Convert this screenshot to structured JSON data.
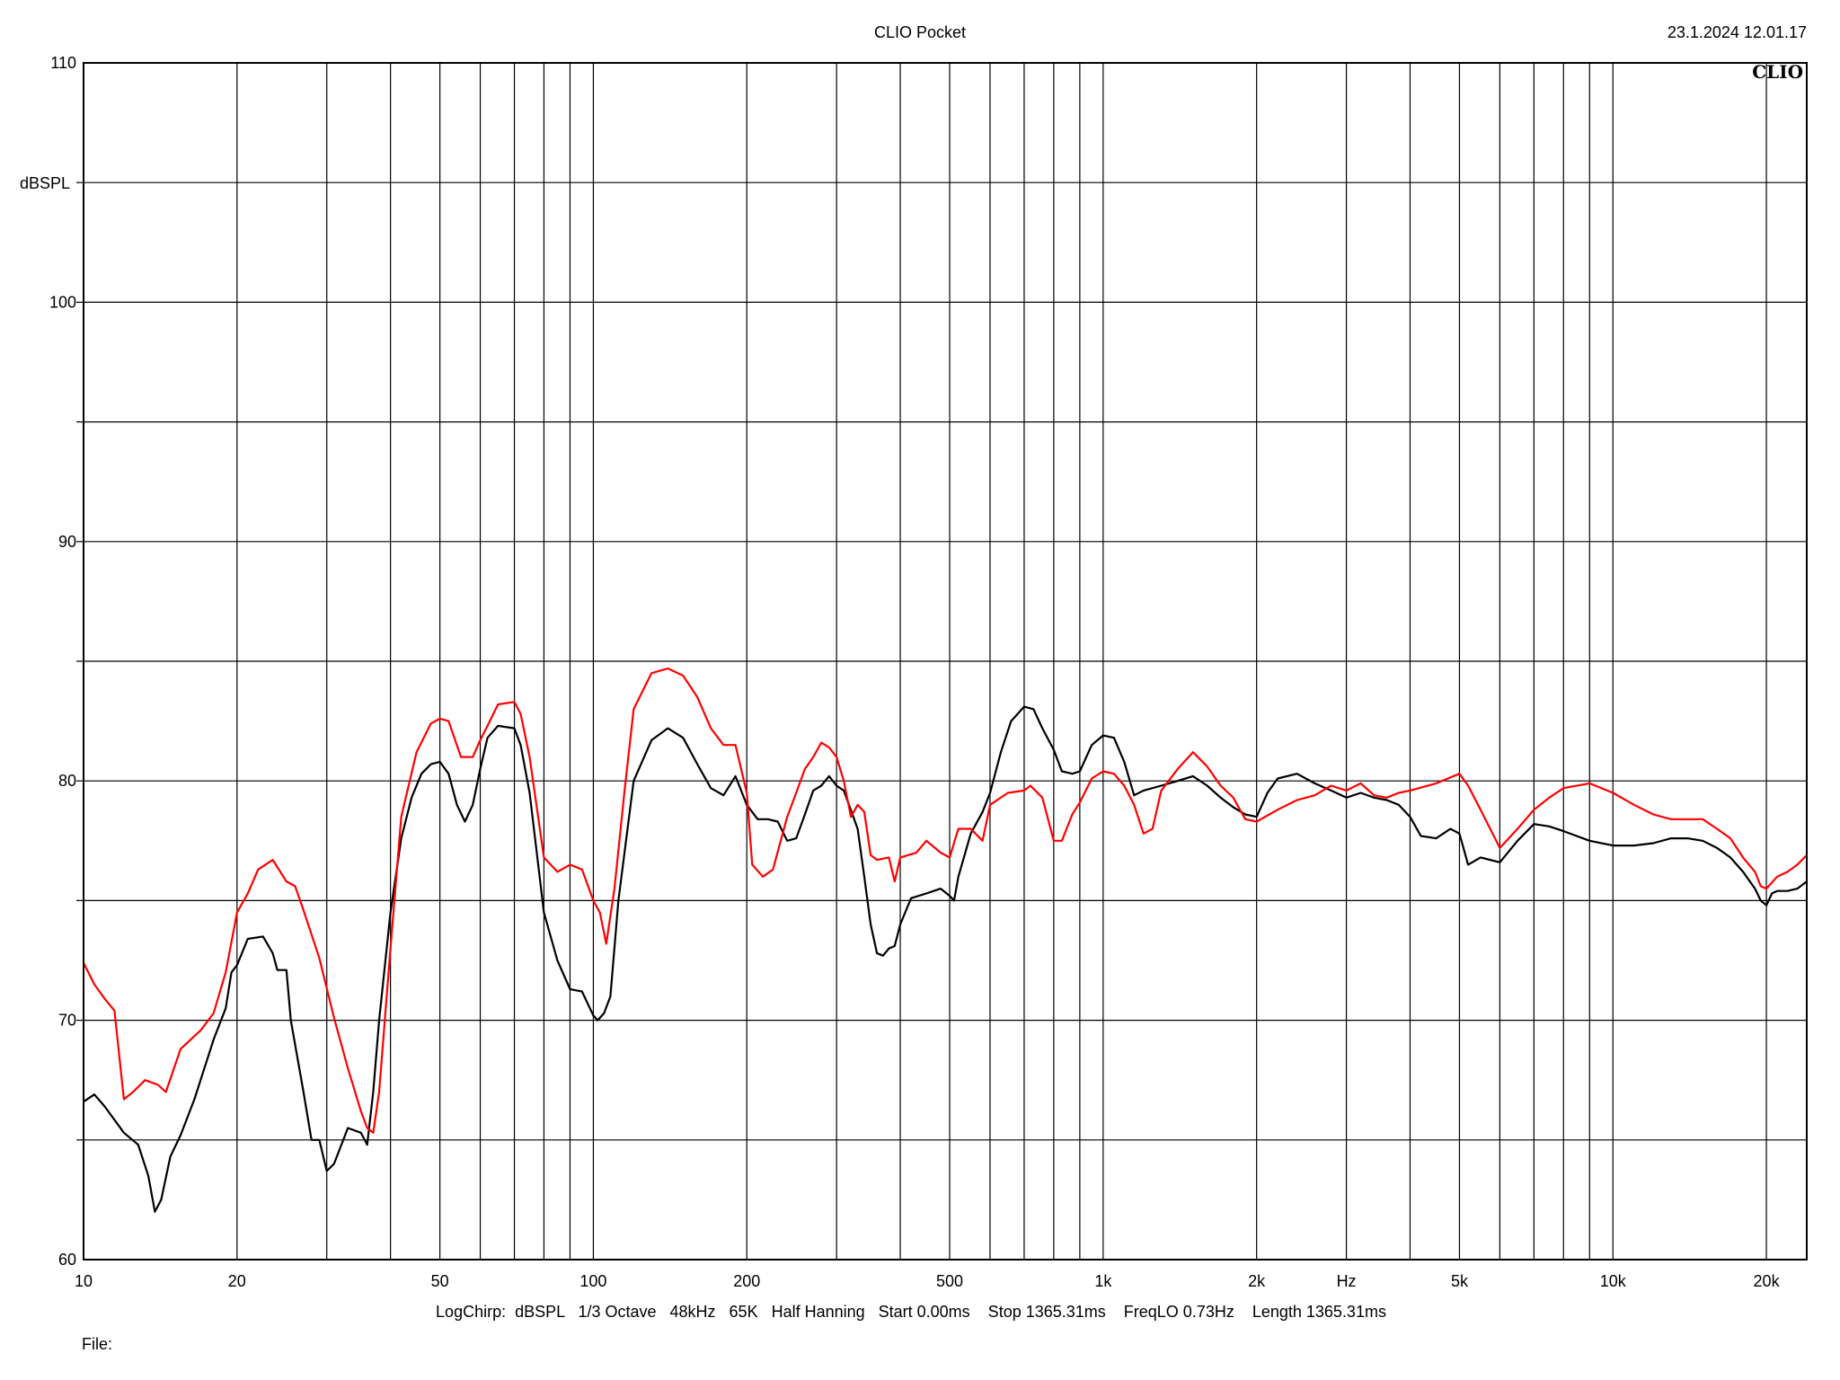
{
  "header": {
    "title": "CLIO Pocket",
    "timestamp": "23.1.2024 12.01.17",
    "logo": "CLIO"
  },
  "footer": {
    "settings": "LogChirp:  dBSPL   1/3 Octave   48kHz   65K   Half Hanning   Start 0.00ms    Stop 1365.31ms    FreqLO 0.73Hz    Length 1365.31ms",
    "file_label": "File:"
  },
  "chart_data": {
    "type": "line",
    "title": "CLIO Pocket",
    "xlabel": "Hz",
    "ylabel": "dBSPL",
    "xscale": "log",
    "xlim": [
      10,
      24000
    ],
    "ylim": [
      60,
      110
    ],
    "grid": true,
    "x_tick_labels": [
      {
        "value": 10,
        "label": "10"
      },
      {
        "value": 20,
        "label": "20"
      },
      {
        "value": 50,
        "label": "50"
      },
      {
        "value": 100,
        "label": "100"
      },
      {
        "value": 200,
        "label": "200"
      },
      {
        "value": 500,
        "label": "500"
      },
      {
        "value": 1000,
        "label": "1k"
      },
      {
        "value": 2000,
        "label": "2k"
      },
      {
        "value": 5000,
        "label": "5k"
      },
      {
        "value": 10000,
        "label": "10k"
      },
      {
        "value": 20000,
        "label": "20k"
      }
    ],
    "x_axis_unit_label_at": 3000,
    "y_ticks": [
      60,
      70,
      80,
      90,
      100,
      110
    ],
    "y_grid_step": 5,
    "series": [
      {
        "color": "#000000",
        "points": [
          [
            10,
            66.6
          ],
          [
            10.5,
            66.9
          ],
          [
            11,
            66.4
          ],
          [
            12,
            65.3
          ],
          [
            12.8,
            64.8
          ],
          [
            13.4,
            63.5
          ],
          [
            13.8,
            62
          ],
          [
            14.2,
            62.5
          ],
          [
            14.8,
            64.3
          ],
          [
            15.5,
            65.2
          ],
          [
            16.5,
            66.7
          ],
          [
            18,
            69.2
          ],
          [
            19,
            70.5
          ],
          [
            19.5,
            72
          ],
          [
            20,
            72.3
          ],
          [
            21,
            73.4
          ],
          [
            22.5,
            73.5
          ],
          [
            23.5,
            72.8
          ],
          [
            24,
            72.1
          ],
          [
            25,
            72.1
          ],
          [
            25.5,
            70
          ],
          [
            27,
            67
          ],
          [
            28,
            65
          ],
          [
            29,
            65
          ],
          [
            30,
            63.7
          ],
          [
            31,
            64
          ],
          [
            33,
            65.5
          ],
          [
            35,
            65.3
          ],
          [
            36,
            64.8
          ],
          [
            37,
            67
          ],
          [
            38,
            70
          ],
          [
            40,
            74.5
          ],
          [
            42,
            77.6
          ],
          [
            44,
            79.3
          ],
          [
            46,
            80.3
          ],
          [
            48,
            80.7
          ],
          [
            50,
            80.8
          ],
          [
            52,
            80.3
          ],
          [
            54,
            79
          ],
          [
            56,
            78.3
          ],
          [
            58,
            79
          ],
          [
            60,
            80.5
          ],
          [
            62,
            81.8
          ],
          [
            65,
            82.3
          ],
          [
            70,
            82.2
          ],
          [
            72,
            81.5
          ],
          [
            75,
            79.5
          ],
          [
            80,
            74.5
          ],
          [
            85,
            72.5
          ],
          [
            90,
            71.3
          ],
          [
            95,
            71.2
          ],
          [
            100,
            70.2
          ],
          [
            102,
            70
          ],
          [
            105,
            70.3
          ],
          [
            108,
            71
          ],
          [
            112,
            75
          ],
          [
            120,
            80
          ],
          [
            130,
            81.7
          ],
          [
            140,
            82.2
          ],
          [
            150,
            81.8
          ],
          [
            160,
            80.7
          ],
          [
            170,
            79.7
          ],
          [
            180,
            79.4
          ],
          [
            190,
            80.2
          ],
          [
            200,
            79
          ],
          [
            210,
            78.4
          ],
          [
            220,
            78.4
          ],
          [
            230,
            78.3
          ],
          [
            240,
            77.5
          ],
          [
            250,
            77.6
          ],
          [
            260,
            78.6
          ],
          [
            270,
            79.6
          ],
          [
            280,
            79.8
          ],
          [
            290,
            80.2
          ],
          [
            300,
            79.8
          ],
          [
            310,
            79.6
          ],
          [
            330,
            78
          ],
          [
            340,
            76
          ],
          [
            350,
            74
          ],
          [
            360,
            72.8
          ],
          [
            370,
            72.7
          ],
          [
            380,
            73
          ],
          [
            390,
            73.1
          ],
          [
            400,
            74
          ],
          [
            420,
            75.1
          ],
          [
            450,
            75.3
          ],
          [
            480,
            75.5
          ],
          [
            500,
            75.2
          ],
          [
            510,
            75
          ],
          [
            520,
            76
          ],
          [
            550,
            77.8
          ],
          [
            580,
            78.7
          ],
          [
            600,
            79.5
          ],
          [
            630,
            81.2
          ],
          [
            660,
            82.5
          ],
          [
            700,
            83.1
          ],
          [
            730,
            83
          ],
          [
            760,
            82.2
          ],
          [
            800,
            81.3
          ],
          [
            830,
            80.4
          ],
          [
            870,
            80.3
          ],
          [
            900,
            80.4
          ],
          [
            950,
            81.5
          ],
          [
            1000,
            81.9
          ],
          [
            1050,
            81.8
          ],
          [
            1100,
            80.8
          ],
          [
            1150,
            79.4
          ],
          [
            1200,
            79.6
          ],
          [
            1300,
            79.8
          ],
          [
            1400,
            80
          ],
          [
            1500,
            80.2
          ],
          [
            1600,
            79.8
          ],
          [
            1700,
            79.3
          ],
          [
            1800,
            78.9
          ],
          [
            1900,
            78.6
          ],
          [
            2000,
            78.5
          ],
          [
            2100,
            79.5
          ],
          [
            2200,
            80.1
          ],
          [
            2400,
            80.3
          ],
          [
            2600,
            79.9
          ],
          [
            2800,
            79.6
          ],
          [
            3000,
            79.3
          ],
          [
            3200,
            79.5
          ],
          [
            3400,
            79.3
          ],
          [
            3600,
            79.2
          ],
          [
            3800,
            79
          ],
          [
            4000,
            78.5
          ],
          [
            4200,
            77.7
          ],
          [
            4500,
            77.6
          ],
          [
            4800,
            78
          ],
          [
            5000,
            77.8
          ],
          [
            5200,
            76.5
          ],
          [
            5500,
            76.8
          ],
          [
            6000,
            76.6
          ],
          [
            6500,
            77.5
          ],
          [
            7000,
            78.2
          ],
          [
            7500,
            78.1
          ],
          [
            8000,
            77.9
          ],
          [
            9000,
            77.5
          ],
          [
            10000,
            77.3
          ],
          [
            11000,
            77.3
          ],
          [
            12000,
            77.4
          ],
          [
            13000,
            77.6
          ],
          [
            14000,
            77.6
          ],
          [
            15000,
            77.5
          ],
          [
            16000,
            77.2
          ],
          [
            17000,
            76.8
          ],
          [
            18000,
            76.2
          ],
          [
            19000,
            75.5
          ],
          [
            19500,
            75
          ],
          [
            20000,
            74.8
          ],
          [
            20500,
            75.3
          ],
          [
            21000,
            75.4
          ],
          [
            22000,
            75.4
          ],
          [
            23000,
            75.5
          ],
          [
            24000,
            75.8
          ]
        ]
      },
      {
        "color": "#ff0000",
        "points": [
          [
            10,
            72.4
          ],
          [
            10.5,
            71.5
          ],
          [
            11,
            70.9
          ],
          [
            11.5,
            70.4
          ],
          [
            12,
            66.7
          ],
          [
            12.5,
            67
          ],
          [
            13.2,
            67.5
          ],
          [
            14,
            67.3
          ],
          [
            14.5,
            67
          ],
          [
            15.5,
            68.8
          ],
          [
            17,
            69.6
          ],
          [
            18,
            70.3
          ],
          [
            19,
            72
          ],
          [
            20,
            74.5
          ],
          [
            21,
            75.3
          ],
          [
            22,
            76.3
          ],
          [
            23.5,
            76.7
          ],
          [
            25,
            75.8
          ],
          [
            26,
            75.6
          ],
          [
            27,
            74.6
          ],
          [
            29,
            72.6
          ],
          [
            31,
            70.1
          ],
          [
            33,
            68
          ],
          [
            35,
            66.2
          ],
          [
            36,
            65.5
          ],
          [
            37,
            65.3
          ],
          [
            38,
            67
          ],
          [
            40,
            73
          ],
          [
            42,
            78.5
          ],
          [
            45,
            81.2
          ],
          [
            48,
            82.4
          ],
          [
            50,
            82.6
          ],
          [
            52,
            82.5
          ],
          [
            55,
            81
          ],
          [
            58,
            81
          ],
          [
            60,
            81.7
          ],
          [
            62,
            82.3
          ],
          [
            65,
            83.2
          ],
          [
            70,
            83.3
          ],
          [
            72,
            82.8
          ],
          [
            75,
            81
          ],
          [
            80,
            76.8
          ],
          [
            85,
            76.2
          ],
          [
            90,
            76.5
          ],
          [
            95,
            76.3
          ],
          [
            100,
            75
          ],
          [
            103,
            74.5
          ],
          [
            106,
            73.2
          ],
          [
            110,
            75.5
          ],
          [
            115,
            79.5
          ],
          [
            120,
            83
          ],
          [
            130,
            84.5
          ],
          [
            140,
            84.7
          ],
          [
            150,
            84.4
          ],
          [
            160,
            83.5
          ],
          [
            170,
            82.2
          ],
          [
            180,
            81.5
          ],
          [
            190,
            81.5
          ],
          [
            200,
            79.5
          ],
          [
            205,
            76.5
          ],
          [
            215,
            76
          ],
          [
            225,
            76.3
          ],
          [
            240,
            78.5
          ],
          [
            250,
            79.5
          ],
          [
            260,
            80.5
          ],
          [
            270,
            81
          ],
          [
            280,
            81.6
          ],
          [
            290,
            81.4
          ],
          [
            300,
            81
          ],
          [
            310,
            80
          ],
          [
            320,
            78.5
          ],
          [
            330,
            79
          ],
          [
            340,
            78.7
          ],
          [
            350,
            76.9
          ],
          [
            360,
            76.7
          ],
          [
            380,
            76.8
          ],
          [
            390,
            75.8
          ],
          [
            400,
            76.8
          ],
          [
            430,
            77
          ],
          [
            450,
            77.5
          ],
          [
            480,
            77
          ],
          [
            500,
            76.8
          ],
          [
            520,
            78
          ],
          [
            550,
            78
          ],
          [
            580,
            77.5
          ],
          [
            600,
            79
          ],
          [
            650,
            79.5
          ],
          [
            700,
            79.6
          ],
          [
            720,
            79.8
          ],
          [
            760,
            79.3
          ],
          [
            800,
            77.5
          ],
          [
            830,
            77.5
          ],
          [
            870,
            78.6
          ],
          [
            900,
            79.1
          ],
          [
            950,
            80.1
          ],
          [
            1000,
            80.4
          ],
          [
            1050,
            80.3
          ],
          [
            1100,
            79.8
          ],
          [
            1150,
            79
          ],
          [
            1200,
            77.8
          ],
          [
            1250,
            78
          ],
          [
            1300,
            79.6
          ],
          [
            1400,
            80.5
          ],
          [
            1500,
            81.2
          ],
          [
            1600,
            80.6
          ],
          [
            1700,
            79.8
          ],
          [
            1800,
            79.3
          ],
          [
            1900,
            78.4
          ],
          [
            2000,
            78.3
          ],
          [
            2200,
            78.8
          ],
          [
            2400,
            79.2
          ],
          [
            2600,
            79.4
          ],
          [
            2800,
            79.8
          ],
          [
            3000,
            79.6
          ],
          [
            3200,
            79.9
          ],
          [
            3400,
            79.4
          ],
          [
            3600,
            79.3
          ],
          [
            3800,
            79.5
          ],
          [
            4000,
            79.6
          ],
          [
            4500,
            79.9
          ],
          [
            5000,
            80.3
          ],
          [
            5200,
            79.8
          ],
          [
            5500,
            78.8
          ],
          [
            6000,
            77.2
          ],
          [
            6500,
            78
          ],
          [
            7000,
            78.8
          ],
          [
            7500,
            79.3
          ],
          [
            8000,
            79.7
          ],
          [
            9000,
            79.9
          ],
          [
            10000,
            79.5
          ],
          [
            11000,
            79
          ],
          [
            12000,
            78.6
          ],
          [
            13000,
            78.4
          ],
          [
            14000,
            78.4
          ],
          [
            15000,
            78.4
          ],
          [
            16000,
            78
          ],
          [
            17000,
            77.6
          ],
          [
            18000,
            76.8
          ],
          [
            19000,
            76.2
          ],
          [
            19500,
            75.6
          ],
          [
            20000,
            75.5
          ],
          [
            21000,
            76
          ],
          [
            22000,
            76.2
          ],
          [
            23000,
            76.5
          ],
          [
            24000,
            76.9
          ]
        ]
      }
    ]
  }
}
